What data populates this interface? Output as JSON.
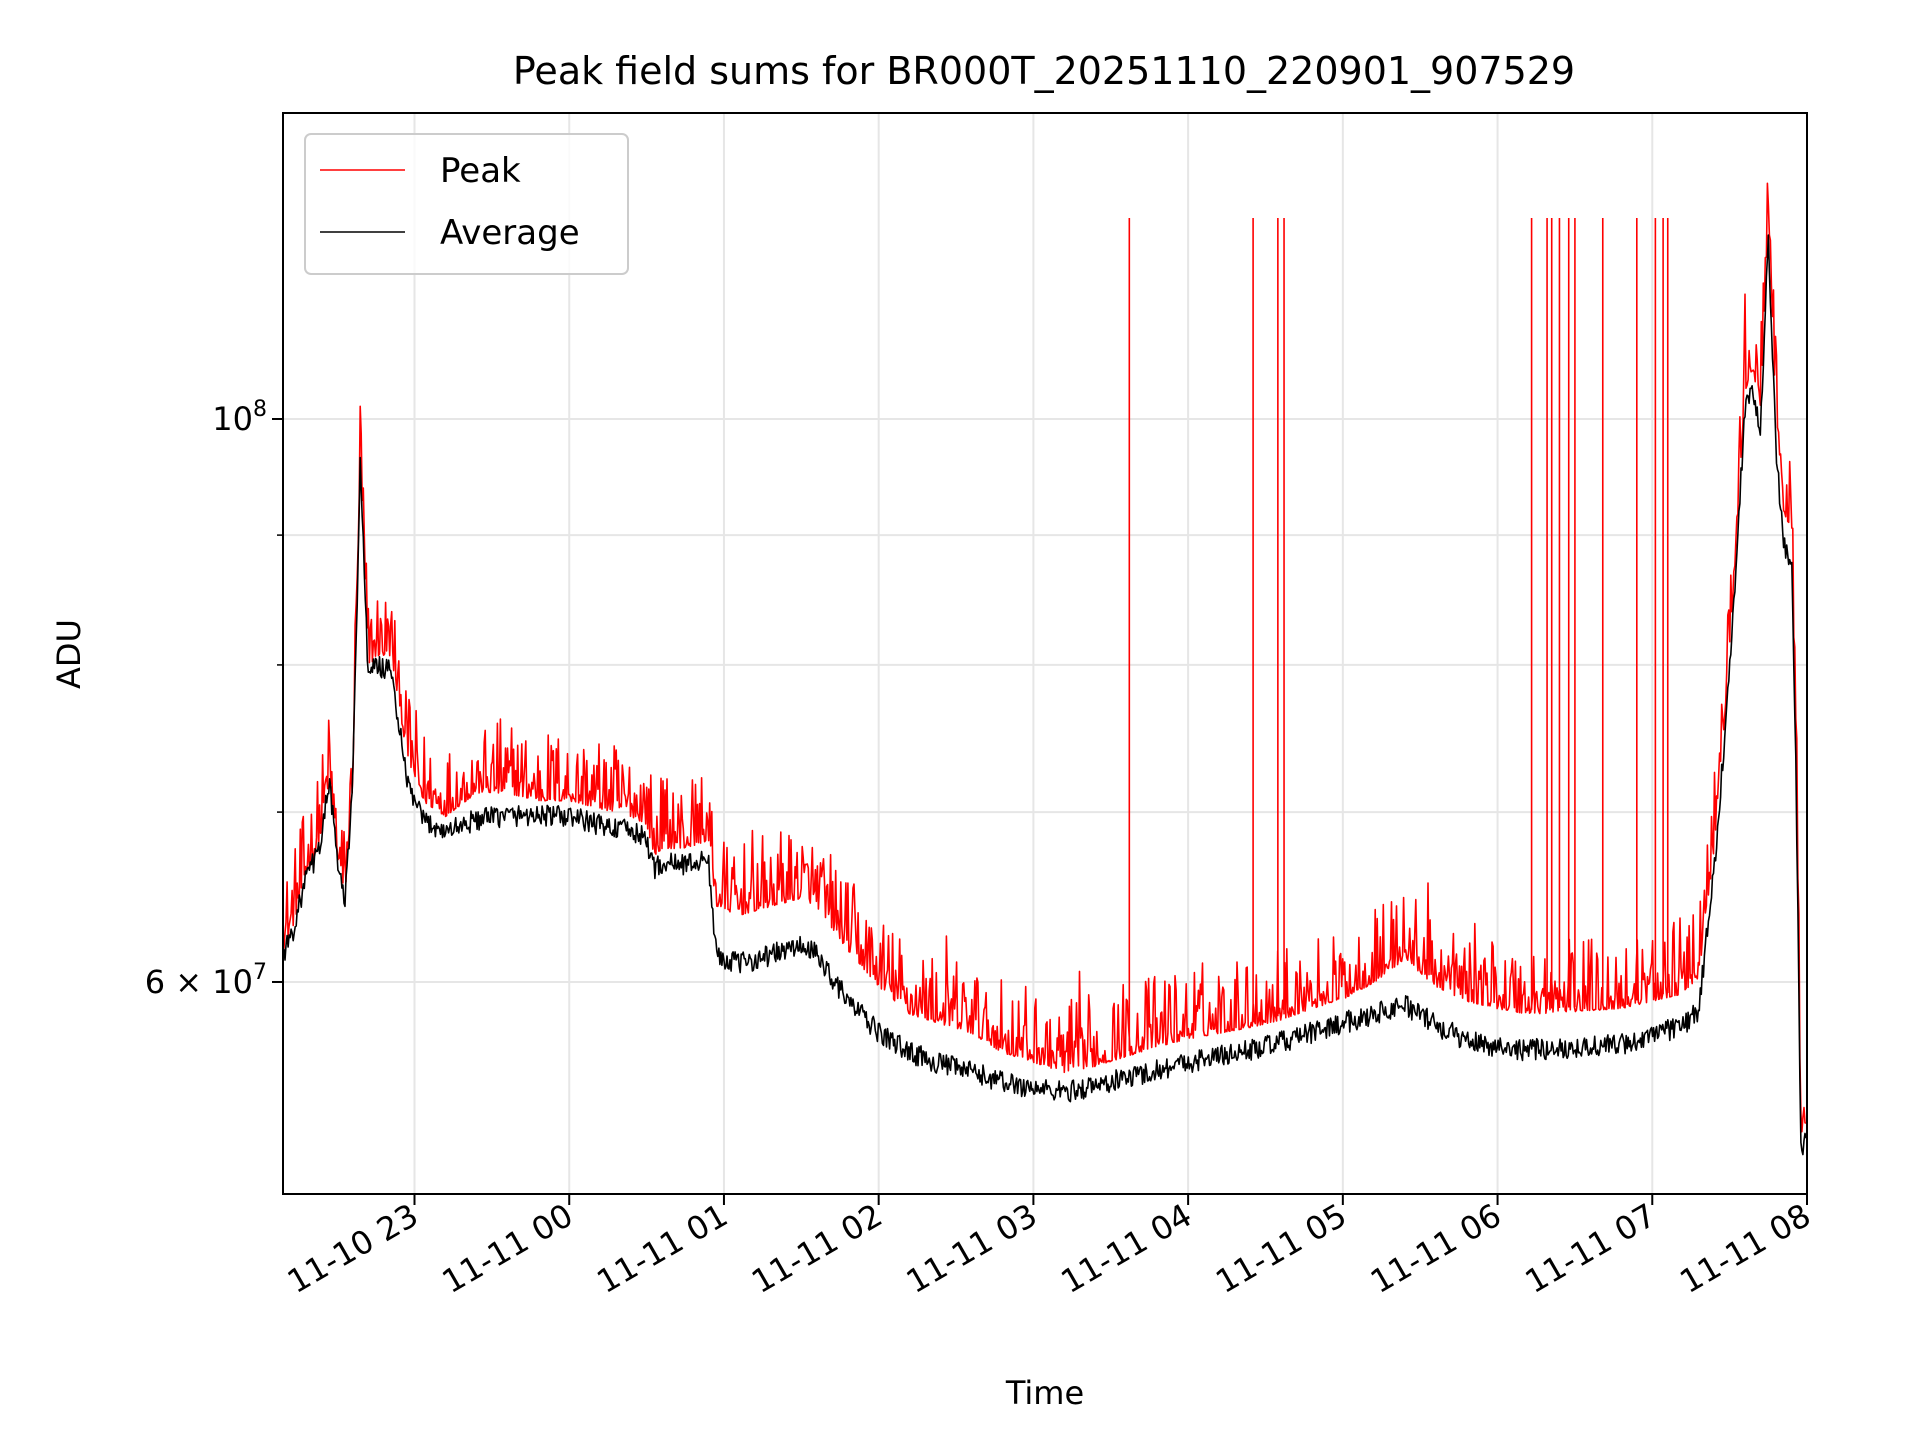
{
  "chart_data": {
    "type": "line",
    "title": "Peak field sums for BR000T_20251110_220901_907529",
    "xlabel": "Time",
    "ylabel": "ADU",
    "yscale": "log",
    "grid": true,
    "legend_position": "upper-left",
    "x_unit": "hours since 2025-11-10 22:00",
    "xlim": [
      0.15,
      10.0
    ],
    "ylim": [
      49500000,
      132000000
    ],
    "x_ticks": [
      {
        "value": 1,
        "label": "11-10 23"
      },
      {
        "value": 2,
        "label": "11-11 00"
      },
      {
        "value": 3,
        "label": "11-11 01"
      },
      {
        "value": 4,
        "label": "11-11 02"
      },
      {
        "value": 5,
        "label": "11-11 03"
      },
      {
        "value": 6,
        "label": "11-11 04"
      },
      {
        "value": 7,
        "label": "11-11 05"
      },
      {
        "value": 8,
        "label": "11-11 06"
      },
      {
        "value": 9,
        "label": "11-11 07"
      },
      {
        "value": 10,
        "label": "11-11 08"
      }
    ],
    "y_major_ticks": [
      {
        "value": 60000000,
        "mantissa": "6",
        "base": "10",
        "exponent": "7"
      },
      {
        "value": 100000000,
        "mantissa": "",
        "base": "10",
        "exponent": "8"
      }
    ],
    "y_minor_ticks": [
      70000000,
      80000000,
      90000000
    ],
    "series": [
      {
        "name": "Peak",
        "color": "#ff0000",
        "x": [
          0.15,
          0.22,
          0.3,
          0.38,
          0.45,
          0.5,
          0.55,
          0.6,
          0.65,
          0.7,
          0.75,
          0.85,
          0.95,
          1.05,
          1.2,
          1.4,
          1.6,
          1.8,
          2.0,
          2.2,
          2.4,
          2.5,
          2.55,
          2.6,
          2.75,
          2.9,
          2.95,
          3.1,
          3.3,
          3.5,
          3.6,
          3.8,
          4.0,
          4.2,
          4.4,
          4.6,
          4.8,
          5.0,
          5.2,
          5.4,
          5.6,
          5.8,
          6.0,
          6.2,
          6.4,
          6.6,
          6.8,
          7.0,
          7.2,
          7.4,
          7.6,
          7.8,
          8.0,
          8.2,
          8.4,
          8.6,
          8.8,
          9.0,
          9.1,
          9.2,
          9.3,
          9.4,
          9.5,
          9.6,
          9.65,
          9.7,
          9.75,
          9.8,
          9.85,
          9.9,
          9.93,
          9.96,
          10.0
        ],
        "values": [
          62000000,
          63500000,
          66500000,
          68000000,
          72500000,
          67500000,
          65000000,
          72000000,
          97500000,
          80000000,
          81000000,
          81000000,
          74000000,
          71000000,
          70000000,
          71500000,
          71500000,
          71000000,
          71000000,
          70500000,
          70000000,
          69500000,
          67500000,
          68000000,
          68000000,
          68500000,
          64500000,
          64000000,
          64500000,
          65000000,
          64500000,
          62000000,
          60000000,
          58500000,
          58000000,
          57500000,
          56500000,
          56000000,
          55500000,
          55800000,
          56300000,
          56800000,
          57200000,
          57500000,
          57800000,
          58200000,
          58800000,
          59300000,
          60200000,
          61500000,
          60000000,
          59200000,
          58800000,
          58500000,
          58600000,
          58700000,
          58800000,
          59200000,
          59400000,
          59600000,
          60500000,
          68000000,
          81000000,
          103000000,
          105000000,
          101000000,
          122000000,
          100000000,
          92000000,
          91000000,
          74000000,
          52500000,
          53000000
        ]
      },
      {
        "name": "Average",
        "color": "#000000",
        "x": [
          0.15,
          0.22,
          0.3,
          0.38,
          0.45,
          0.5,
          0.55,
          0.6,
          0.65,
          0.7,
          0.75,
          0.85,
          0.95,
          1.05,
          1.2,
          1.4,
          1.6,
          1.8,
          2.0,
          2.2,
          2.4,
          2.5,
          2.55,
          2.6,
          2.75,
          2.9,
          2.95,
          3.1,
          3.3,
          3.5,
          3.6,
          3.8,
          4.0,
          4.2,
          4.4,
          4.6,
          4.8,
          5.0,
          5.2,
          5.4,
          5.6,
          5.8,
          6.0,
          6.2,
          6.4,
          6.6,
          6.8,
          7.0,
          7.2,
          7.4,
          7.6,
          7.8,
          8.0,
          8.2,
          8.4,
          8.6,
          8.8,
          9.0,
          9.1,
          9.2,
          9.3,
          9.4,
          9.5,
          9.6,
          9.65,
          9.7,
          9.75,
          9.8,
          9.85,
          9.9,
          9.93,
          9.96,
          10.0
        ],
        "values": [
          61500000,
          63000000,
          66000000,
          67500000,
          72000000,
          67000000,
          64500000,
          71500000,
          96500000,
          79000000,
          80000000,
          79500000,
          72000000,
          69500000,
          68800000,
          69500000,
          69800000,
          69800000,
          69700000,
          69200000,
          68800000,
          68300000,
          66500000,
          66800000,
          66800000,
          67000000,
          61500000,
          61000000,
          61500000,
          62000000,
          61500000,
          59000000,
          57300000,
          56300000,
          55700000,
          55300000,
          54800000,
          54500000,
          54300000,
          54600000,
          55000000,
          55400000,
          55800000,
          56100000,
          56400000,
          56800000,
          57300000,
          57800000,
          58300000,
          58800000,
          57700000,
          56900000,
          56600000,
          56400000,
          56500000,
          56600000,
          56700000,
          57100000,
          57400000,
          57700000,
          58500000,
          66500000,
          79500000,
          101000000,
          103000000,
          99000000,
          118000000,
          97000000,
          89000000,
          88000000,
          72000000,
          51500000,
          52000000
        ]
      }
    ],
    "spikes": {
      "series": "Peak",
      "x": [
        5.62,
        6.42,
        6.58,
        6.62,
        8.22,
        8.32,
        8.35,
        8.4,
        8.46,
        8.5,
        8.68,
        8.9,
        9.02,
        9.07,
        9.1
      ],
      "values": [
        120000000,
        120000000,
        120000000,
        120000000,
        120000000,
        120000000,
        120000000,
        120000000,
        120000000,
        120000000,
        120000000,
        120000000,
        120000000,
        120000000,
        120000000
      ]
    }
  }
}
